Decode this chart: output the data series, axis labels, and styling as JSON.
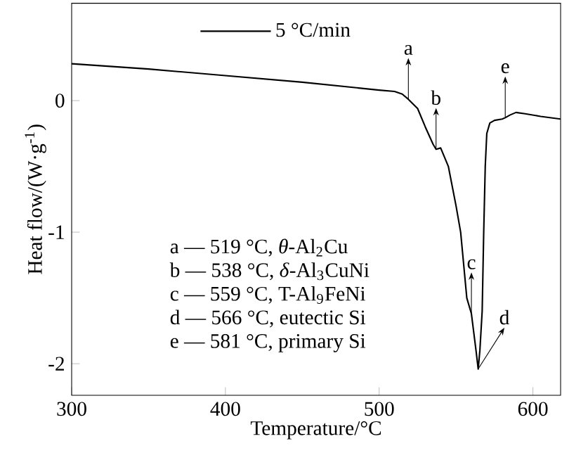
{
  "chart_data": {
    "type": "line",
    "xlabel": "Temperature/°C",
    "ylabel": "Heat flow/(W·g$^{-1}$)",
    "xlim": [
      300,
      618
    ],
    "ylim": [
      -2.24,
      0.74
    ],
    "xticks": [
      300,
      400,
      500,
      600
    ],
    "yticks": [
      -2,
      -1,
      0
    ],
    "legend": "top",
    "series": [
      {
        "name": "5 °C/min",
        "color": "#000000",
        "x": [
          300,
          350,
          400,
          450,
          500,
          510,
          515,
          519,
          525,
          530,
          535,
          537,
          540,
          545,
          550,
          553,
          557,
          560,
          563,
          564.4,
          565.5,
          567,
          568,
          569,
          570,
          572,
          575,
          580,
          582,
          585,
          589,
          595,
          605,
          618
        ],
        "values": [
          0.28,
          0.24,
          0.19,
          0.14,
          0.08,
          0.07,
          0.05,
          0.01,
          -0.06,
          -0.2,
          -0.33,
          -0.37,
          -0.36,
          -0.5,
          -0.8,
          -1.0,
          -1.5,
          -1.62,
          -1.9,
          -2.04,
          -1.9,
          -1.6,
          -1.0,
          -0.5,
          -0.25,
          -0.17,
          -0.15,
          -0.14,
          -0.13,
          -0.11,
          -0.09,
          -0.1,
          -0.12,
          -0.14
        ]
      }
    ],
    "annotations": [
      {
        "text": "a",
        "x": 519,
        "y": 0.01
      },
      {
        "text": "b",
        "x": 537,
        "y": -0.37
      },
      {
        "text": "c",
        "x": 560,
        "y": -1.62
      },
      {
        "text": "d",
        "x": 564.4,
        "y": -2.04
      },
      {
        "text": "e",
        "x": 582,
        "y": -0.13
      },
      "a — 519 °C, *θ*-Al$_{2}$Cu",
      "b — 538 °C, *δ*-Al$_{3}$CuNi",
      "c — 559 °C, T-Al$_{9}$FeNi",
      "d — 566 °C, eutectic Si",
      "e — 581 °C, primary Si"
    ]
  }
}
